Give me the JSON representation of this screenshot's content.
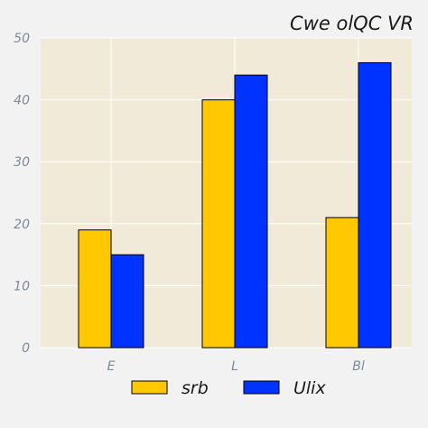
{
  "chart_data": {
    "type": "bar",
    "title": "Cwe olQC VR",
    "categories": [
      "E",
      "L",
      "Bl"
    ],
    "series": [
      {
        "name": "srb",
        "color": "#ffc800",
        "values": [
          19,
          40,
          21
        ]
      },
      {
        "name": "Ulix",
        "color": "#0033ff",
        "values": [
          15,
          44,
          46
        ]
      }
    ],
    "ylim": [
      0,
      50
    ],
    "yticks": [
      0,
      10,
      20,
      30,
      40,
      50
    ],
    "grid": true,
    "plot_background": "#f2ead8",
    "legend_position": "bottom-center"
  }
}
